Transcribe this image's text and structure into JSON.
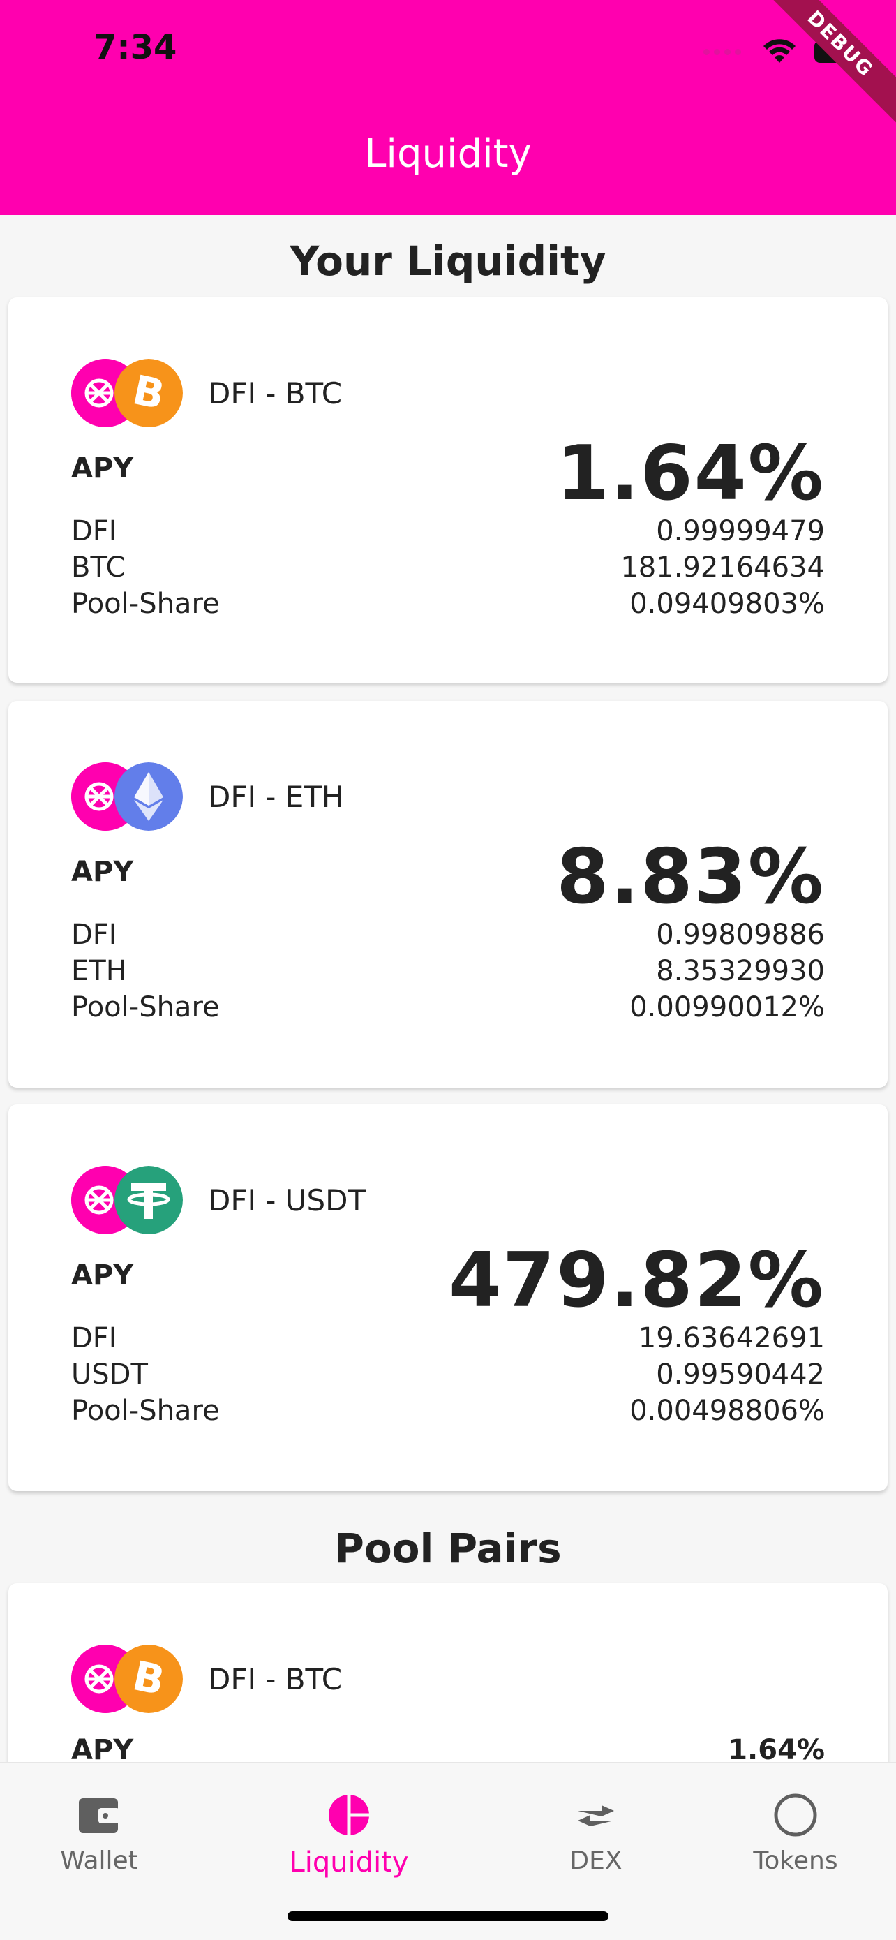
{
  "status_bar": {
    "time": "7:34"
  },
  "header": {
    "title": "Liquidity",
    "debug_ribbon": "DEBUG"
  },
  "your_liquidity": {
    "title": "Your Liquidity",
    "cards": [
      {
        "pair": "DFI - BTC",
        "apy_label": "APY",
        "apy": "1.64%",
        "rows": [
          {
            "label": "DFI",
            "value": "0.99999479"
          },
          {
            "label": "BTC",
            "value": "181.92164634"
          },
          {
            "label": "Pool-Share",
            "value": "0.09409803%"
          }
        ]
      },
      {
        "pair": "DFI - ETH",
        "apy_label": "APY",
        "apy": "8.83%",
        "rows": [
          {
            "label": "DFI",
            "value": "0.99809886"
          },
          {
            "label": "ETH",
            "value": "8.35329930"
          },
          {
            "label": "Pool-Share",
            "value": "0.00990012%"
          }
        ]
      },
      {
        "pair": "DFI - USDT",
        "apy_label": "APY",
        "apy": "479.82%",
        "rows": [
          {
            "label": "DFI",
            "value": "19.63642691"
          },
          {
            "label": "USDT",
            "value": "0.99590442"
          },
          {
            "label": "Pool-Share",
            "value": "0.00498806%"
          }
        ]
      }
    ]
  },
  "pool_pairs": {
    "title": "Pool Pairs",
    "cards": [
      {
        "pair": "DFI - BTC",
        "apy_label": "APY",
        "apy": "1.64%"
      }
    ]
  },
  "bottom_nav": {
    "items": [
      {
        "label": "Wallet",
        "icon": "wallet-icon"
      },
      {
        "label": "Liquidity",
        "icon": "pie-chart-icon"
      },
      {
        "label": "DEX",
        "icon": "swap-arrows-icon"
      },
      {
        "label": "Tokens",
        "icon": "circle-icon"
      }
    ],
    "active": "Liquidity"
  },
  "colors": {
    "brand": "#ff00af",
    "btc": "#f7931a",
    "eth": "#627eea",
    "usdt": "#26a17b"
  }
}
